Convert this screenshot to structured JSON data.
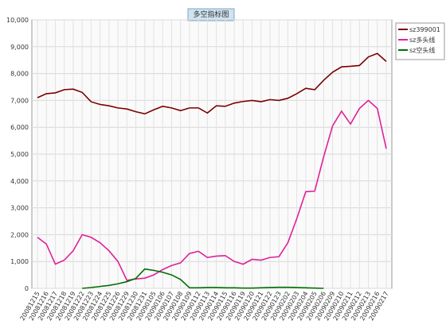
{
  "chart_data": {
    "type": "line",
    "title": "多空指标图",
    "categories": [
      "20081215",
      "20081216",
      "20081217",
      "20081218",
      "20081219",
      "20081222",
      "20081223",
      "20081224",
      "20081225",
      "20081226",
      "20081229",
      "20081230",
      "20081231",
      "20090105",
      "20090106",
      "20090107",
      "20090108",
      "20090109",
      "20090112",
      "20090113",
      "20090114",
      "20090115",
      "20090116",
      "20090119",
      "20090120",
      "20090121",
      "20090122",
      "20090123",
      "20090202",
      "20090203",
      "20090204",
      "20090205",
      "20090206",
      "20090209",
      "20090210",
      "20090211",
      "20090212",
      "20090213",
      "20090216",
      "20090217"
    ],
    "series": [
      {
        "name": "sz399001",
        "color": "#7b0000",
        "values": [
          7100,
          7250,
          7280,
          7400,
          7420,
          7300,
          6950,
          6850,
          6800,
          6720,
          6680,
          6580,
          6500,
          6650,
          6780,
          6720,
          6620,
          6720,
          6720,
          6530,
          6800,
          6780,
          6900,
          6960,
          7000,
          6950,
          7030,
          7000,
          7080,
          7250,
          7450,
          7400,
          7750,
          8050,
          8250,
          8270,
          8300,
          8620,
          8750,
          8450
        ]
      },
      {
        "name": "sz多头线",
        "color": "#e0209a",
        "values": [
          1900,
          1650,
          900,
          1050,
          1400,
          2000,
          1900,
          1700,
          1400,
          1000,
          300,
          350,
          380,
          500,
          700,
          850,
          950,
          1300,
          1380,
          1150,
          1200,
          1220,
          1000,
          900,
          1080,
          1050,
          1150,
          1180,
          1700,
          2600,
          3600,
          3620,
          4900,
          6050,
          6600,
          6120,
          6700,
          7000,
          6700,
          5200
        ]
      },
      {
        "name": "sz空头线",
        "color": "#007000",
        "values": [
          null,
          null,
          null,
          null,
          null,
          0,
          30,
          70,
          110,
          170,
          250,
          370,
          720,
          670,
          600,
          500,
          330,
          20,
          20,
          30,
          30,
          20,
          20,
          10,
          10,
          20,
          30,
          40,
          40,
          30,
          20,
          10,
          0,
          null,
          null,
          null,
          null,
          null,
          null,
          null
        ]
      }
    ],
    "ylim": [
      0,
      10000
    ],
    "yticks": [
      0,
      {
        "value": 1000,
        "label": "1,000"
      },
      {
        "value": 2000,
        "label": "2,000"
      },
      {
        "value": 3000,
        "label": "3,000"
      },
      {
        "value": 4000,
        "label": "4,000"
      },
      {
        "value": 5000,
        "label": "5,000"
      },
      {
        "value": 6000,
        "label": "6,000"
      },
      {
        "value": 7000,
        "label": "7,000"
      },
      {
        "value": 8000,
        "label": "8,000"
      },
      {
        "value": 9000,
        "label": "9,000"
      },
      {
        "value": 10000,
        "label": "10,000"
      }
    ],
    "grid": true,
    "legend": "top-right"
  }
}
